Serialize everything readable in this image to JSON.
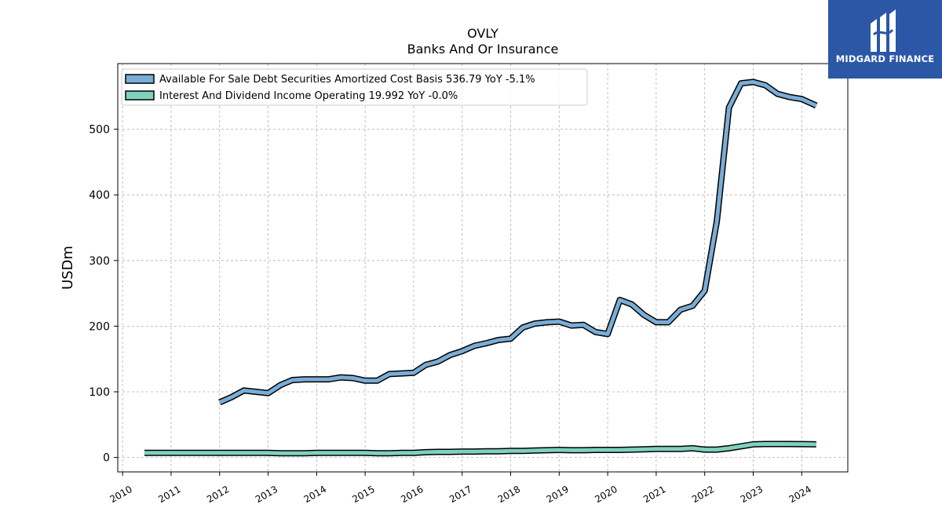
{
  "chart_data": {
    "type": "line",
    "title": "OVLY",
    "subtitle": "Banks And Or Insurance",
    "ylabel": "USDm",
    "xlabel": "",
    "xlim": [
      2009.9,
      2024.95
    ],
    "ylim": [
      -22,
      600
    ],
    "yticks": [
      0,
      100,
      200,
      300,
      400,
      500
    ],
    "xticks": [
      "2010",
      "2011",
      "2012",
      "2013",
      "2014",
      "2015",
      "2016",
      "2017",
      "2018",
      "2019",
      "2020",
      "2021",
      "2022",
      "2023",
      "2024"
    ],
    "grid": true,
    "legend_position": "top-left",
    "series": [
      {
        "name": "Available For Sale Debt Securities Amortized Cost Basis",
        "legend_label": "Available For Sale Debt Securities Amortized Cost Basis  536.79 YoY -5.1%",
        "color": "#7aadd6",
        "x": [
          2012.0,
          2012.25,
          2012.5,
          2012.75,
          2013.0,
          2013.25,
          2013.5,
          2013.75,
          2014.0,
          2014.25,
          2014.5,
          2014.75,
          2015.0,
          2015.25,
          2015.5,
          2015.75,
          2016.0,
          2016.25,
          2016.5,
          2016.75,
          2017.0,
          2017.25,
          2017.5,
          2017.75,
          2018.0,
          2018.25,
          2018.5,
          2018.75,
          2019.0,
          2019.25,
          2019.5,
          2019.75,
          2020.0,
          2020.25,
          2020.5,
          2020.75,
          2021.0,
          2021.25,
          2021.5,
          2021.75,
          2022.0,
          2022.25,
          2022.5,
          2022.75,
          2023.0,
          2023.25,
          2023.5,
          2023.75,
          2024.0,
          2024.3
        ],
        "y": [
          84,
          92,
          102,
          100,
          98,
          110,
          118,
          119,
          119,
          119,
          122,
          121,
          117,
          117,
          127,
          128,
          129,
          141,
          146,
          156,
          162,
          170,
          174,
          179,
          181,
          198,
          204,
          206,
          207,
          201,
          202,
          191,
          188,
          240,
          233,
          217,
          206,
          206,
          225,
          231,
          254,
          360,
          533,
          570,
          572,
          567,
          554,
          549,
          546,
          536
        ]
      },
      {
        "name": "Interest And Dividend Income Operating",
        "legend_label": "Interest And Dividend Income Operating  19.992 YoY -0.0%",
        "color": "#7fd1be",
        "x": [
          2010.45,
          2010.75,
          2011.0,
          2011.25,
          2011.5,
          2011.75,
          2012.0,
          2012.25,
          2012.5,
          2012.75,
          2013.0,
          2013.25,
          2013.5,
          2013.75,
          2014.0,
          2014.25,
          2014.5,
          2014.75,
          2015.0,
          2015.25,
          2015.5,
          2015.75,
          2016.0,
          2016.25,
          2016.5,
          2016.75,
          2017.0,
          2017.25,
          2017.5,
          2017.75,
          2018.0,
          2018.25,
          2018.5,
          2018.75,
          2019.0,
          2019.25,
          2019.5,
          2019.75,
          2020.0,
          2020.25,
          2020.5,
          2020.75,
          2021.0,
          2021.25,
          2021.5,
          2021.75,
          2022.0,
          2022.25,
          2022.5,
          2022.75,
          2023.0,
          2023.25,
          2023.5,
          2023.75,
          2024.0,
          2024.3
        ],
        "y": [
          7,
          7,
          7,
          7,
          7,
          7,
          7,
          7,
          7,
          7,
          7,
          6.5,
          6.5,
          6.5,
          7,
          7,
          7,
          7,
          7,
          6.5,
          6.5,
          7,
          7,
          8,
          8.5,
          8.5,
          9,
          9,
          9.5,
          9.5,
          10,
          10,
          10.5,
          11,
          11.5,
          11,
          11,
          11.5,
          11.5,
          11.5,
          12,
          12.5,
          13,
          13,
          13,
          14,
          12,
          12,
          14,
          17,
          20,
          20.5,
          20.5,
          20.5,
          20.3,
          20
        ]
      }
    ]
  },
  "logo": {
    "text": "MIDGARD FINANCE"
  }
}
